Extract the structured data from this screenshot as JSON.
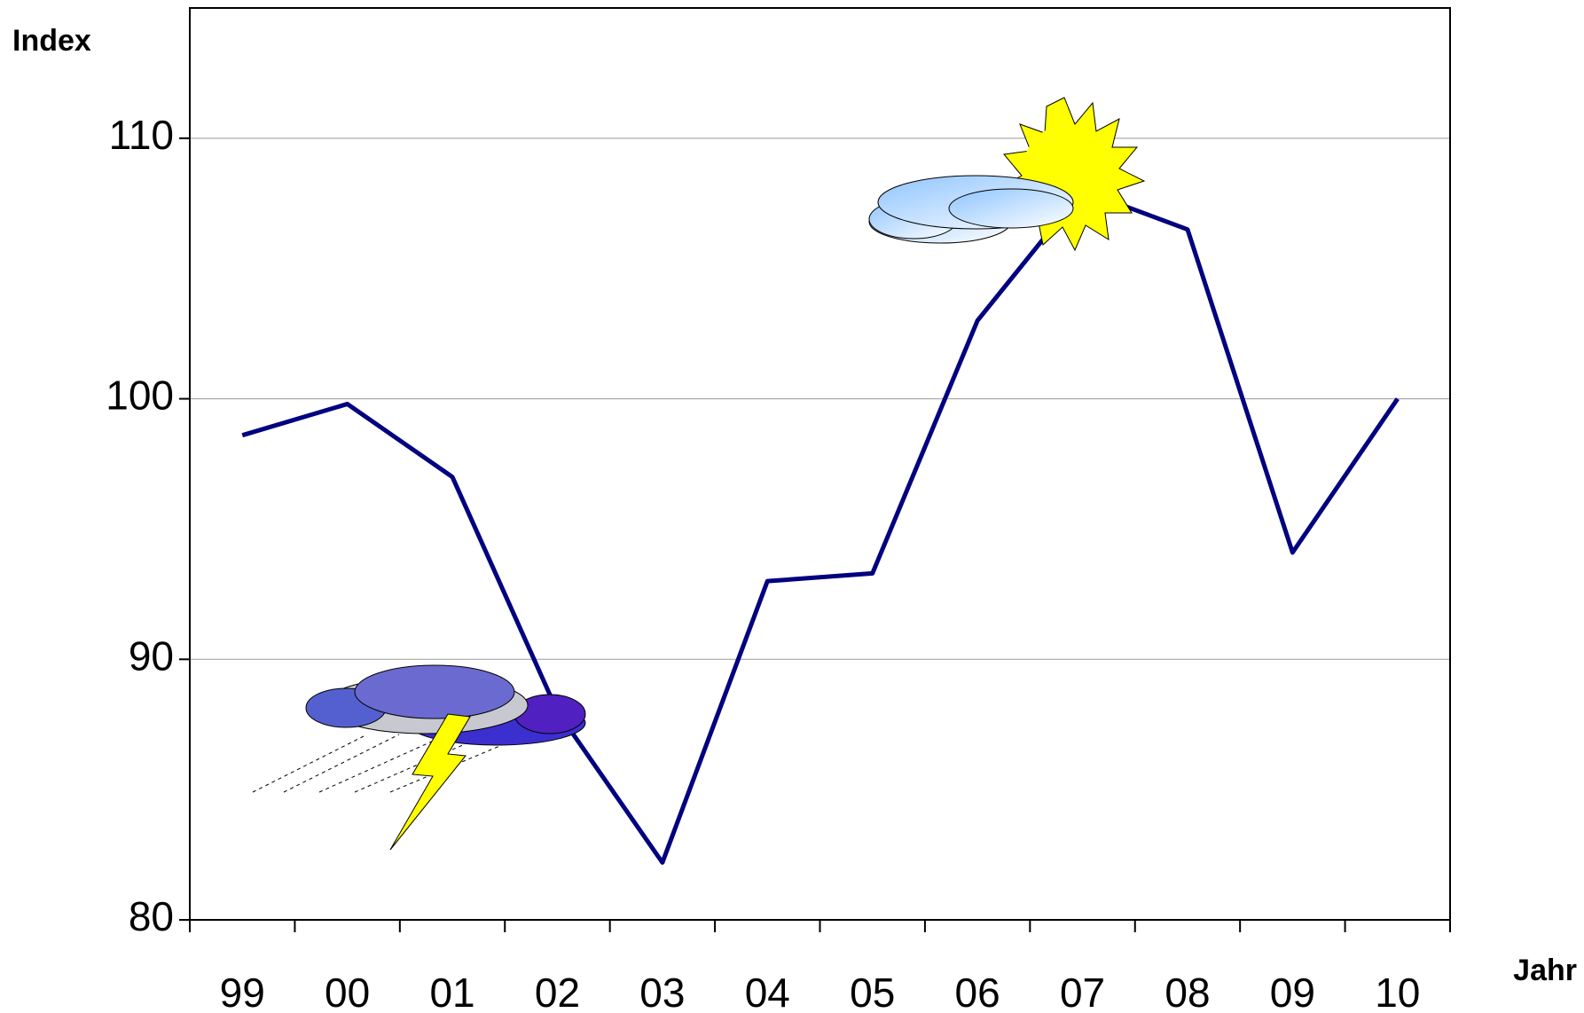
{
  "chart_data": {
    "type": "line",
    "y_label": "Index",
    "x_label": "Jahr",
    "categories": [
      "99",
      "00",
      "01",
      "02",
      "03",
      "04",
      "05",
      "06",
      "07",
      "08",
      "09",
      "10"
    ],
    "series": [
      {
        "name": "Index",
        "color": "#000080",
        "values": [
          98.6,
          99.8,
          97.0,
          88.0,
          82.2,
          93.0,
          93.3,
          103.0,
          108.0,
          106.5,
          94.1,
          100.0
        ]
      }
    ],
    "ylim": [
      80,
      115
    ],
    "yticks": [
      80,
      90,
      100,
      110
    ],
    "grid": true
  }
}
